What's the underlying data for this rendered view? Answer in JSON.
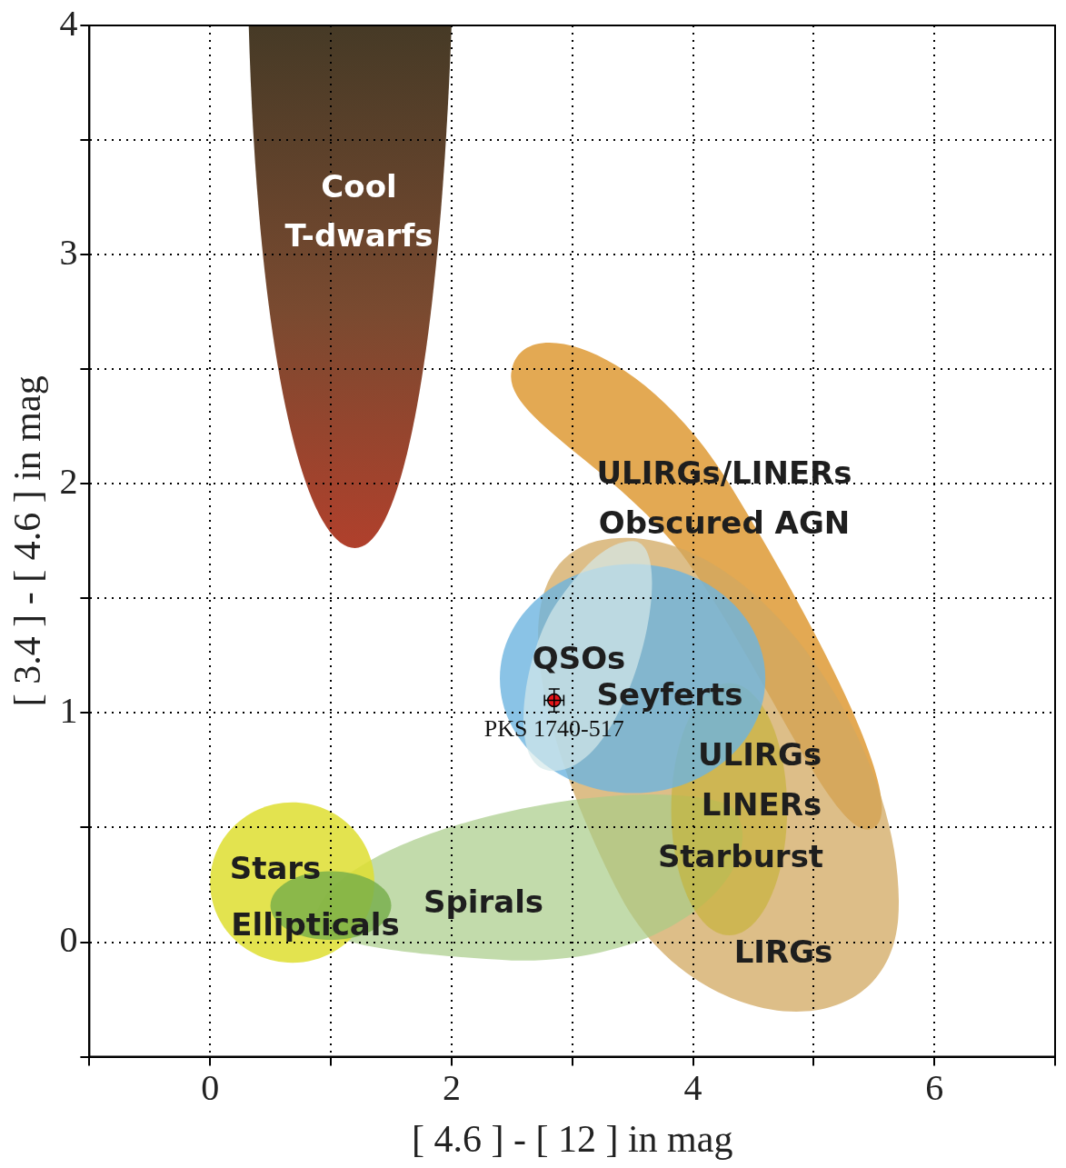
{
  "chart_data": {
    "type": "scatter",
    "xlabel": "[ 4.6 ] - [ 12 ] in mag",
    "ylabel": "[ 3.4 ] - [ 4.6 ] in mag",
    "xlim": [
      -1,
      7
    ],
    "ylim": [
      -0.5,
      4
    ],
    "xticks": [
      {
        "value": -1,
        "label": null
      },
      0,
      {
        "value": 1,
        "label": null
      },
      2,
      {
        "value": 3,
        "label": null
      },
      4,
      {
        "value": 5,
        "label": null
      },
      6,
      {
        "value": 7,
        "label": null
      }
    ],
    "yticks": [
      {
        "value": -0.5,
        "label": null
      },
      0,
      {
        "value": 0.5,
        "label": null
      },
      1,
      {
        "value": 1.5,
        "label": null
      },
      2,
      {
        "value": 2.5,
        "label": null
      },
      3,
      {
        "value": 3.5,
        "label": null
      },
      4
    ],
    "grid": true,
    "legend": false,
    "marker": "circle",
    "x": [
      2.85
    ],
    "values": [
      1.055
    ],
    "color": "#e8161b",
    "xerrors": [
      0.08
    ],
    "errors": [
      0.05
    ],
    "annotations": [
      {
        "text": "PKS 1740-517",
        "x": 2.85,
        "y": 1.055
      },
      "Cool",
      "T-dwarfs",
      "ULIRGs/LINERs",
      "Obscured AGN",
      "QSOs",
      "Seyferts",
      "ULIRGs",
      "LINERs",
      "Starburst",
      "LIRGs",
      "Stars",
      "Ellipticals",
      "Spirals"
    ]
  }
}
